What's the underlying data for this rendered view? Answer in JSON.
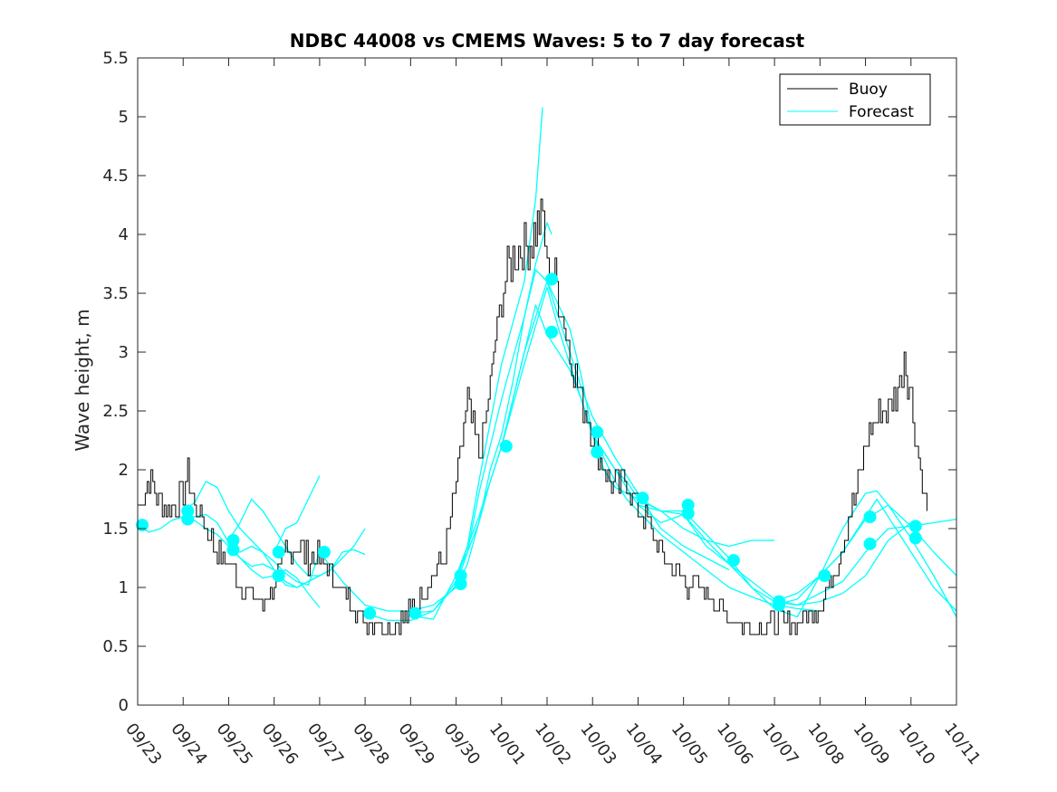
{
  "chart_data": {
    "type": "line",
    "title": "NDBC 44008 vs CMEMS Waves: 5 to 7 day forecast",
    "xlabel": "",
    "ylabel": "Wave height, m",
    "xlim": [
      0,
      18
    ],
    "ylim": [
      0,
      5.5
    ],
    "x_tick_labels": [
      "09/23",
      "09/24",
      "09/25",
      "09/26",
      "09/27",
      "09/28",
      "09/29",
      "09/30",
      "10/01",
      "10/02",
      "10/03",
      "10/04",
      "10/05",
      "10/06",
      "10/07",
      "10/08",
      "10/09",
      "10/10",
      "10/11"
    ],
    "y_ticks": [
      "0",
      "0.5",
      "1",
      "1.5",
      "2",
      "2.5",
      "3",
      "3.5",
      "4",
      "4.5",
      "5",
      "5.5"
    ],
    "x_units": "days since 09/23 00:00",
    "legend": {
      "position": "top-right",
      "entries": [
        {
          "label": "Buoy",
          "color": "#000000"
        },
        {
          "label": "Forecast",
          "color": "#00ffff"
        }
      ]
    },
    "buoy": {
      "name": "Buoy",
      "color": "#000000",
      "x": [
        0,
        0.25,
        0.5,
        0.75,
        1,
        1.1,
        1.25,
        1.5,
        1.75,
        2,
        2.25,
        2.5,
        2.75,
        3,
        3.25,
        3.5,
        3.75,
        4,
        4.25,
        4.5,
        4.75,
        5,
        5.25,
        5.5,
        5.75,
        6,
        6.25,
        6.5,
        6.75,
        7,
        7.25,
        7.5,
        7.75,
        7.9,
        8,
        8.25,
        8.5,
        8.75,
        8.9,
        9,
        9.1,
        9.25,
        9.5,
        9.75,
        10,
        10.25,
        10.5,
        10.75,
        11,
        11.25,
        11.5,
        11.75,
        12,
        12.25,
        12.5,
        12.75,
        13,
        13.25,
        13.5,
        13.75,
        14,
        14.25,
        14.5,
        14.75,
        15,
        15.25,
        15.5,
        15.75,
        16,
        16.25,
        16.5,
        16.75,
        16.85,
        17,
        17.25,
        17.35
      ],
      "y": [
        1.7,
        1.9,
        1.75,
        1.65,
        1.8,
        2.0,
        1.7,
        1.5,
        1.3,
        1.2,
        1.05,
        0.9,
        0.85,
        1.0,
        1.3,
        1.35,
        1.25,
        1.25,
        1.1,
        0.95,
        0.85,
        0.7,
        0.7,
        0.65,
        0.7,
        0.8,
        0.95,
        1.1,
        1.3,
        1.9,
        2.6,
        2.1,
        2.7,
        3.2,
        3.5,
        3.8,
        3.9,
        4.0,
        4.2,
        3.7,
        3.7,
        3.5,
        3.0,
        2.6,
        2.3,
        2.0,
        1.85,
        1.9,
        1.65,
        1.5,
        1.3,
        1.15,
        1.05,
        1.0,
        0.95,
        0.85,
        0.75,
        0.7,
        0.65,
        0.65,
        0.7,
        0.7,
        0.7,
        0.75,
        0.85,
        1.05,
        1.4,
        1.75,
        2.2,
        2.45,
        2.55,
        2.7,
        3.0,
        2.6,
        1.9,
        1.65
      ]
    },
    "forecasts": [
      {
        "x": [
          0,
          0.25,
          0.5,
          0.75,
          1,
          1.25,
          1.5,
          1.75,
          2,
          2.25,
          2.5,
          2.75,
          3
        ],
        "y": [
          1.53,
          1.47,
          1.5,
          1.57,
          1.6,
          1.57,
          1.5,
          1.45,
          1.35,
          1.25,
          1.15,
          1.08,
          1.1
        ]
      },
      {
        "x": [
          1,
          1.25,
          1.5,
          1.75,
          2,
          2.25,
          2.5,
          2.75,
          3,
          3.25,
          3.5,
          3.75,
          4
        ],
        "y": [
          1.65,
          1.72,
          1.9,
          1.85,
          1.65,
          1.5,
          1.4,
          1.3,
          1.22,
          1.12,
          1.05,
          1.02,
          1.3
        ]
      },
      {
        "x": [
          1,
          1.25,
          1.5,
          1.75,
          2,
          2.25,
          2.5,
          2.75,
          3,
          3.25,
          3.5,
          3.75,
          4
        ],
        "y": [
          1.58,
          1.6,
          1.62,
          1.55,
          1.38,
          1.25,
          1.18,
          1.2,
          1.15,
          1.02,
          1.0,
          1.05,
          1.1
        ]
      },
      {
        "x": [
          2,
          2.25,
          2.5,
          2.75,
          3,
          3.25,
          3.5,
          3.75,
          4,
          4.25,
          4.5,
          4.75,
          5
        ],
        "y": [
          1.4,
          1.55,
          1.75,
          1.65,
          1.5,
          1.35,
          1.2,
          1.1,
          1.1,
          1.15,
          1.25,
          1.35,
          1.5
        ]
      },
      {
        "x": [
          2,
          2.25,
          2.5,
          2.75,
          3,
          3.25,
          3.5,
          3.75,
          4,
          4.25,
          4.5,
          4.75,
          5
        ],
        "y": [
          1.32,
          1.3,
          1.35,
          1.3,
          1.15,
          1.05,
          1.0,
          1.05,
          1.1,
          1.15,
          1.3,
          1.32,
          1.28
        ]
      },
      {
        "x": [
          3,
          3.25,
          3.5,
          3.75,
          4
        ],
        "y": [
          1.3,
          1.5,
          1.55,
          1.75,
          1.95
        ]
      },
      {
        "x": [
          3,
          3.25,
          3.5,
          3.75,
          4
        ],
        "y": [
          1.1,
          1.15,
          1.08,
          0.95,
          0.83
        ]
      },
      {
        "x": [
          4,
          4.5,
          5,
          5.5,
          6,
          6.5,
          7,
          7.25,
          7.5,
          7.75,
          8,
          8.25,
          8.5,
          8.75,
          9,
          9.1
        ],
        "y": [
          1.3,
          1.05,
          0.85,
          0.8,
          0.8,
          0.85,
          1.0,
          1.2,
          1.55,
          2.0,
          2.3,
          2.75,
          3.3,
          3.75,
          4.1,
          4.0
        ]
      },
      {
        "x": [
          5,
          5.5,
          6,
          6.5,
          7,
          7.25,
          7.5,
          7.75,
          8,
          8.25,
          8.5,
          8.75,
          8.9
        ],
        "y": [
          0.78,
          0.72,
          0.72,
          0.8,
          1.05,
          1.35,
          1.9,
          2.4,
          2.9,
          3.25,
          3.6,
          4.3,
          5.08
        ]
      },
      {
        "x": [
          6,
          6.5,
          7,
          7.25,
          7.5,
          7.75,
          8,
          8.25,
          8.5,
          8.75,
          9,
          9.25,
          9.5,
          9.75,
          10,
          10.5,
          11,
          11.5,
          12,
          12.5,
          13
        ],
        "y": [
          0.78,
          0.8,
          1.02,
          1.3,
          1.8,
          2.2,
          2.6,
          2.95,
          3.3,
          3.7,
          3.6,
          3.3,
          3.0,
          2.7,
          2.45,
          2.1,
          1.8,
          1.5,
          1.35,
          1.25,
          1.15
        ]
      },
      {
        "x": [
          6,
          6.5,
          7,
          7.25,
          7.5,
          7.75,
          8,
          8.25,
          8.5,
          8.75,
          9,
          9.25,
          9.5,
          9.75,
          10,
          10.25,
          10.5,
          10.75,
          11,
          11.5,
          12,
          12.5,
          13,
          13.5,
          14,
          14.5,
          15
        ],
        "y": [
          0.76,
          0.73,
          1.1,
          1.3,
          1.55,
          1.9,
          2.2,
          2.6,
          3.0,
          3.4,
          3.15,
          3.0,
          2.85,
          2.6,
          2.3,
          2.1,
          1.9,
          1.75,
          1.65,
          1.45,
          1.3,
          1.15,
          1.0,
          0.92,
          0.85,
          0.82,
          0.8
        ]
      },
      {
        "x": [
          7,
          7.5,
          8,
          8.5,
          9,
          9.25,
          9.5,
          9.75,
          10,
          10.25,
          10.5,
          11,
          11.5,
          12,
          12.5,
          13,
          13.5,
          14
        ],
        "y": [
          1.1,
          1.6,
          2.2,
          3.0,
          3.6,
          3.4,
          3.2,
          2.8,
          2.3,
          2.0,
          1.85,
          1.75,
          1.65,
          1.5,
          1.4,
          1.35,
          1.4,
          1.4
        ]
      },
      {
        "x": [
          8,
          8.5,
          9,
          9.25,
          9.5,
          9.75,
          10,
          10.25,
          10.5,
          10.75,
          11,
          11.5,
          12,
          12.5,
          13,
          13.5,
          14,
          14.5,
          15,
          15.5,
          16,
          16.5,
          17
        ],
        "y": [
          2.2,
          2.9,
          3.55,
          3.2,
          2.9,
          2.6,
          2.3,
          2.15,
          2.0,
          1.9,
          1.76,
          1.65,
          1.62,
          1.4,
          1.2,
          1.05,
          0.9,
          0.85,
          0.88,
          0.95,
          1.1,
          1.4,
          1.55
        ]
      },
      {
        "x": [
          10,
          10.5,
          11,
          11.5,
          12,
          12.5,
          13,
          13.5,
          14,
          14.5,
          15,
          15.5,
          16,
          16.5,
          17,
          17.5,
          18
        ],
        "y": [
          2.3,
          2.0,
          1.7,
          1.65,
          1.65,
          1.45,
          1.25,
          1.0,
          0.88,
          0.85,
          0.95,
          1.05,
          1.3,
          1.5,
          1.52,
          1.55,
          1.58
        ]
      },
      {
        "x": [
          11,
          11.5,
          12,
          12.5,
          13,
          13.5,
          14,
          14.5,
          15,
          15.5,
          16,
          16.5,
          17,
          17.5,
          18
        ],
        "y": [
          1.7,
          1.55,
          1.62,
          1.35,
          1.2,
          1.0,
          0.82,
          0.75,
          1.1,
          1.3,
          1.58,
          1.7,
          1.52,
          1.3,
          1.1
        ]
      },
      {
        "x": [
          14,
          14.5,
          15,
          15.5,
          16,
          16.25,
          16.5,
          17,
          17.5,
          18
        ],
        "y": [
          0.85,
          0.9,
          1.1,
          1.5,
          1.8,
          1.82,
          1.7,
          1.42,
          1.1,
          0.75
        ]
      },
      {
        "x": [
          14,
          14.5,
          15,
          15.5,
          16,
          16.25,
          16.5,
          17,
          17.5,
          18
        ],
        "y": [
          0.88,
          0.95,
          1.1,
          1.3,
          1.6,
          1.75,
          1.6,
          1.3,
          1.0,
          0.8
        ]
      }
    ],
    "forecast_markers": {
      "color": "#00ffff",
      "x": [
        0.1,
        1.1,
        1.1,
        2.1,
        2.1,
        3.1,
        3.1,
        4.1,
        5.1,
        6.1,
        7.1,
        7.1,
        8.1,
        9.1,
        9.1,
        10.1,
        10.1,
        11.1,
        12.1,
        12.1,
        13.1,
        14.1,
        14.1,
        15.1,
        16.1,
        16.1,
        17.1,
        17.1
      ],
      "y": [
        1.53,
        1.65,
        1.58,
        1.4,
        1.32,
        1.3,
        1.1,
        1.3,
        0.78,
        0.78,
        1.1,
        1.03,
        2.2,
        3.62,
        3.17,
        2.32,
        2.15,
        1.76,
        1.7,
        1.63,
        1.23,
        0.88,
        0.85,
        1.1,
        1.6,
        1.37,
        1.52,
        1.42
      ]
    }
  }
}
